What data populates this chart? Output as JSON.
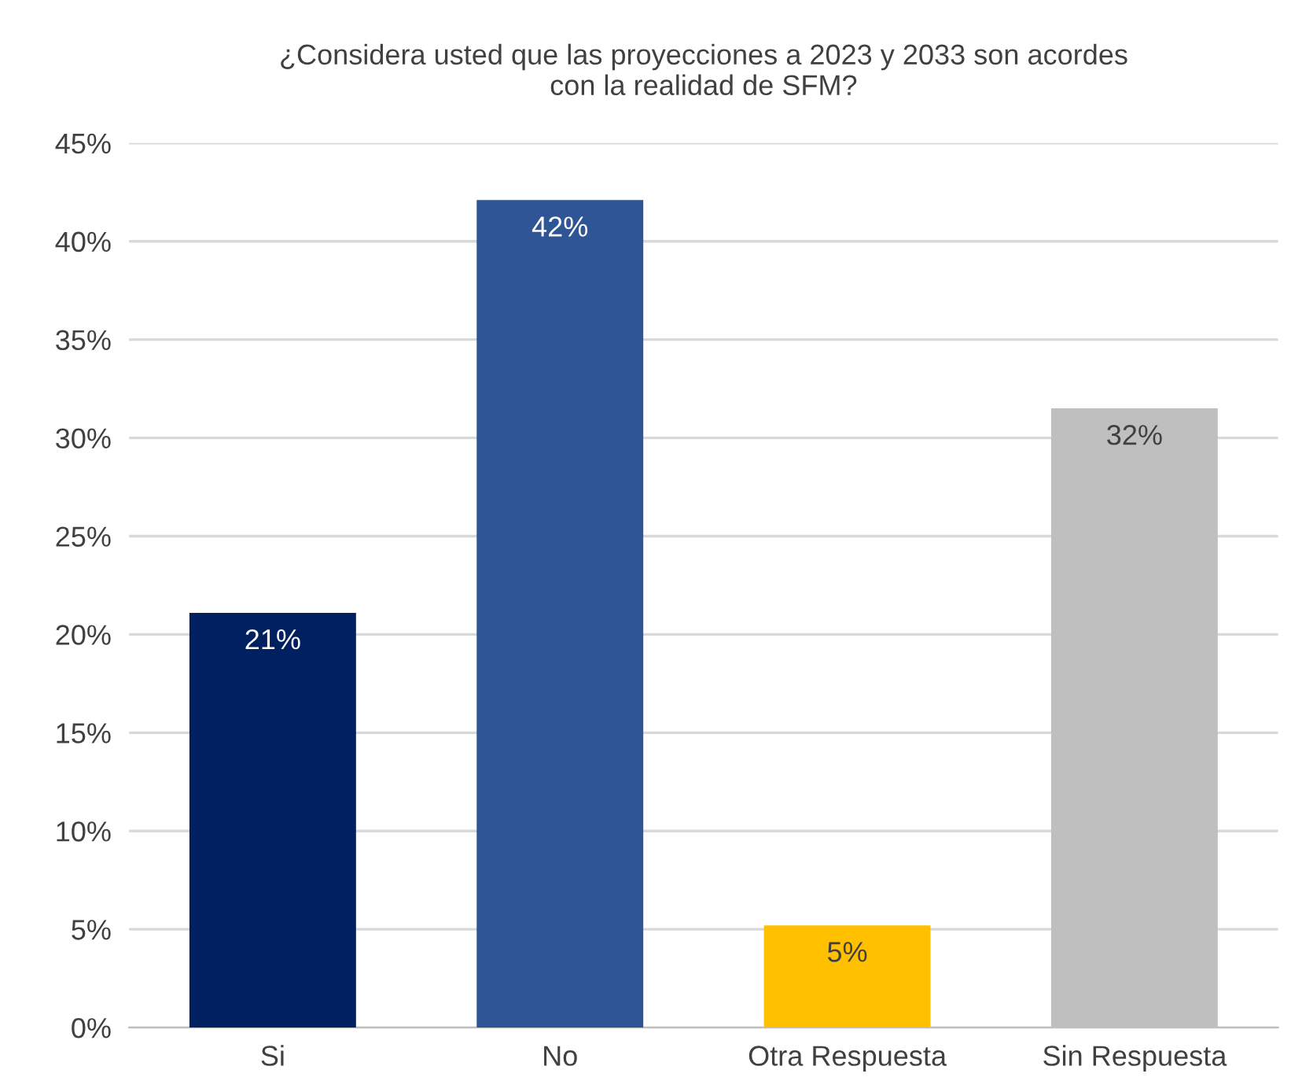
{
  "chart_data": {
    "type": "bar",
    "title": "¿Considera usted que las proyecciones a 2023 y 2033 son acordes\ncon la realidad de SFM?",
    "categories": [
      "Si",
      "No",
      "Otra Respuesta",
      "Sin Respuesta"
    ],
    "values": [
      21.1,
      42.1,
      5.2,
      31.5
    ],
    "value_labels": [
      "21%",
      "42%",
      "5%",
      "32%"
    ],
    "colors": [
      "#002060",
      "#2f5597",
      "#ffc000",
      "#bfbfbf"
    ],
    "ylim": [
      0,
      45
    ],
    "yticks": [
      {
        "value": 0,
        "label": "0%"
      },
      {
        "value": 5,
        "label": "5%"
      },
      {
        "value": 10,
        "label": "10%"
      },
      {
        "value": 15,
        "label": "15%"
      },
      {
        "value": 20,
        "label": "20%"
      },
      {
        "value": 25,
        "label": "25%"
      },
      {
        "value": 30,
        "label": "30%"
      },
      {
        "value": 35,
        "label": "35%"
      },
      {
        "value": 40,
        "label": "40%"
      },
      {
        "value": 45,
        "label": "45%"
      }
    ],
    "grid": "y",
    "legend": false
  }
}
